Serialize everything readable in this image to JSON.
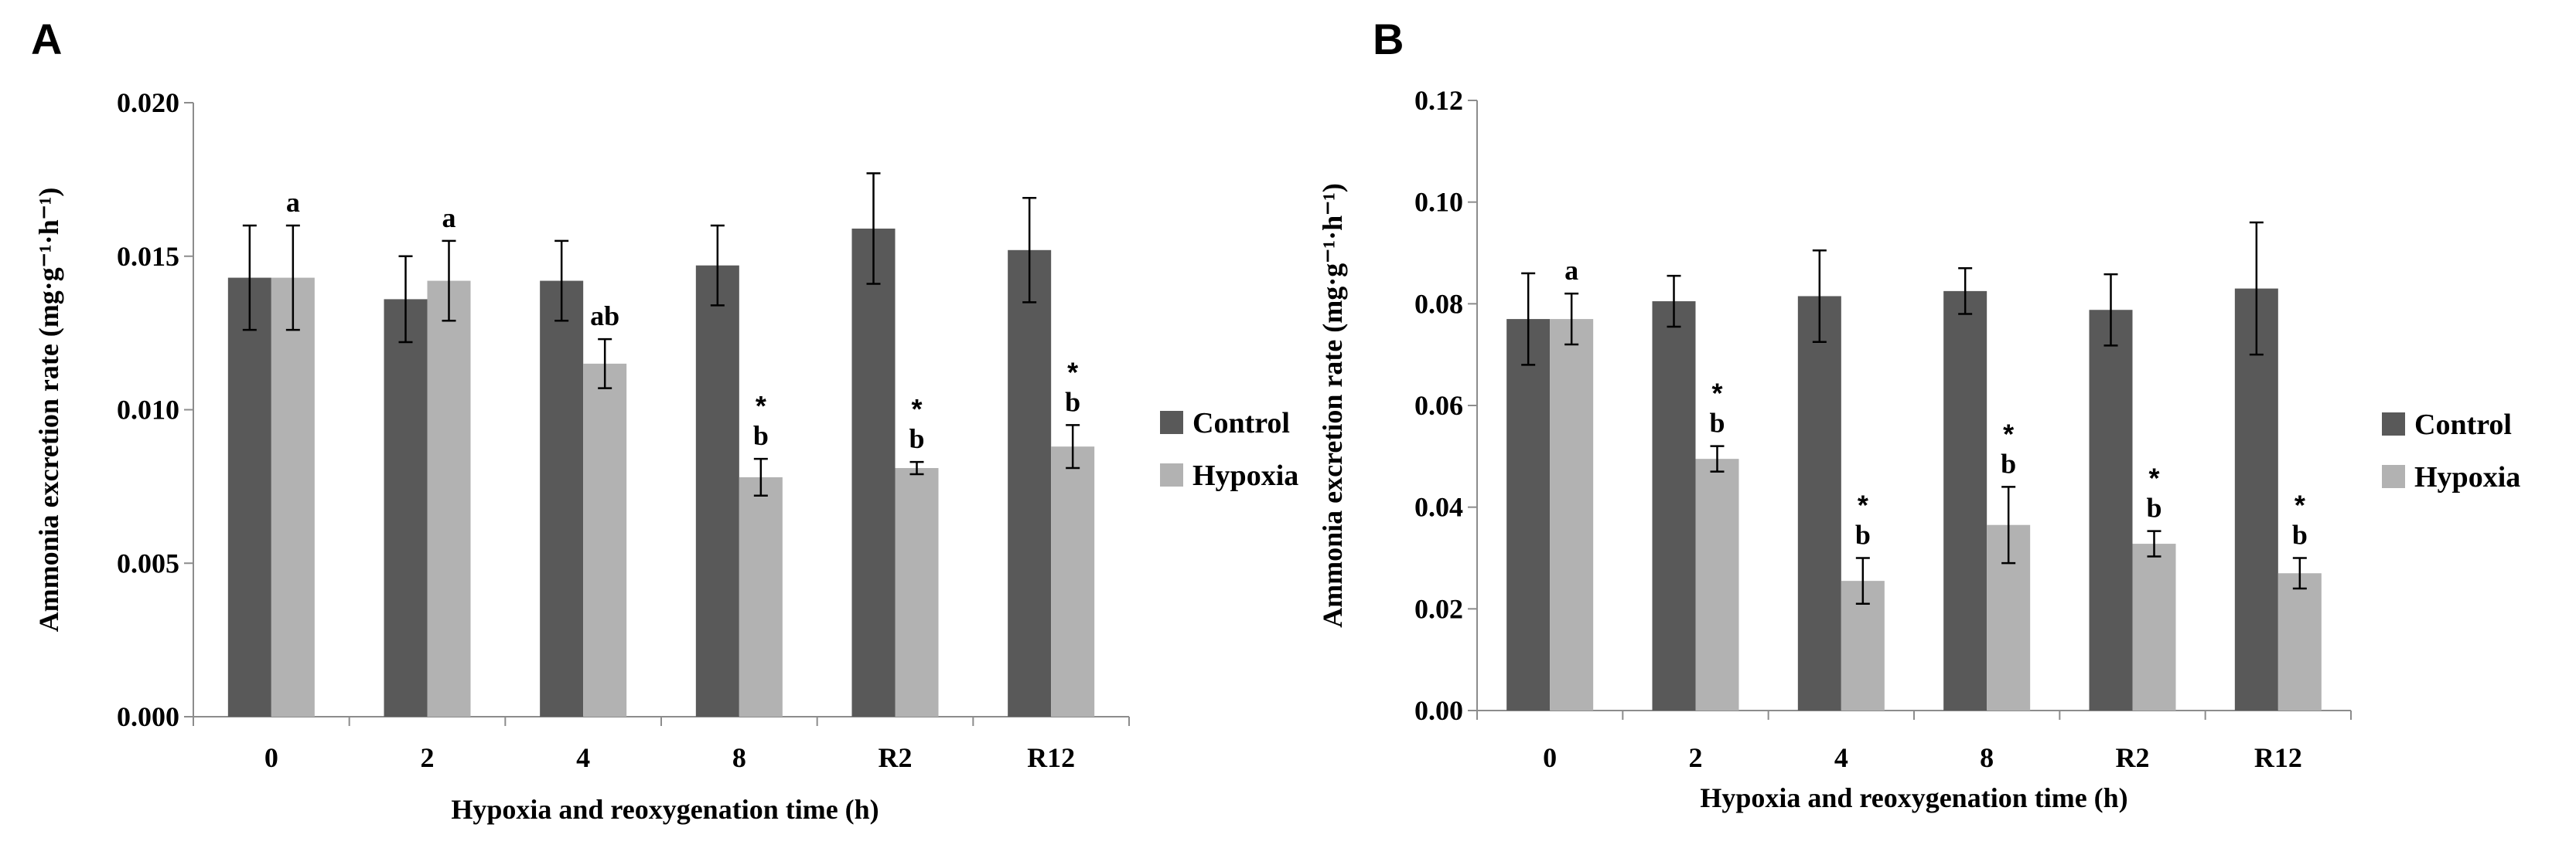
{
  "chart_data": [
    {
      "panel": "A",
      "type": "bar",
      "title": "",
      "xlabel": "Hypoxia  and reoxygenation time (h)",
      "ylabel": "Ammonia excretion rate (mg·g⁻¹·h⁻¹)",
      "ylim": [
        0,
        0.02
      ],
      "yticks": [
        "0.000",
        "0.005",
        "0.010",
        "0.015",
        "0.020"
      ],
      "categories": [
        "0",
        "2",
        "4",
        "8",
        "R2",
        "R12"
      ],
      "legend_position": "right",
      "series": [
        {
          "name": "Control",
          "color": "#595959",
          "values": [
            0.0143,
            0.0136,
            0.0142,
            0.0147,
            0.0159,
            0.0152
          ],
          "errors": [
            0.0017,
            0.0014,
            0.0013,
            0.0013,
            0.0018,
            0.0017
          ]
        },
        {
          "name": "Hypoxia",
          "color": "#b2b2b2",
          "values": [
            0.0143,
            0.0142,
            0.0115,
            0.0078,
            0.0081,
            0.0088
          ],
          "errors": [
            0.0017,
            0.0013,
            0.0008,
            0.0006,
            0.0002,
            0.0007
          ],
          "labels": [
            "a",
            "a",
            "ab",
            "b",
            "b",
            "b"
          ],
          "stars": [
            "",
            "",
            "",
            "*",
            "*",
            "*"
          ]
        }
      ]
    },
    {
      "panel": "B",
      "type": "bar",
      "title": "",
      "xlabel": "Hypoxia  and reoxygenation time (h)",
      "ylabel": "Ammonia excretion rate (mg·g⁻¹·h⁻¹)",
      "ylim": [
        0,
        0.12
      ],
      "yticks": [
        "0.00",
        "0.02",
        "0.04",
        "0.06",
        "0.08",
        "0.10",
        "0.12"
      ],
      "categories": [
        "0",
        "2",
        "4",
        "8",
        "R2",
        "R12"
      ],
      "legend_position": "right",
      "series": [
        {
          "name": "Control",
          "color": "#595959",
          "values": [
            0.077,
            0.0805,
            0.0815,
            0.0825,
            0.0788,
            0.083
          ],
          "errors": [
            0.009,
            0.005,
            0.009,
            0.0045,
            0.007,
            0.013
          ]
        },
        {
          "name": "Hypoxia",
          "color": "#b2b2b2",
          "values": [
            0.077,
            0.0495,
            0.0255,
            0.0365,
            0.0328,
            0.027
          ],
          "errors": [
            0.005,
            0.0025,
            0.0045,
            0.0075,
            0.0025,
            0.003
          ],
          "labels": [
            "a",
            "b",
            "b",
            "b",
            "b",
            "b"
          ],
          "stars": [
            "",
            "*",
            "*",
            "*",
            "*",
            "*"
          ]
        }
      ]
    }
  ]
}
